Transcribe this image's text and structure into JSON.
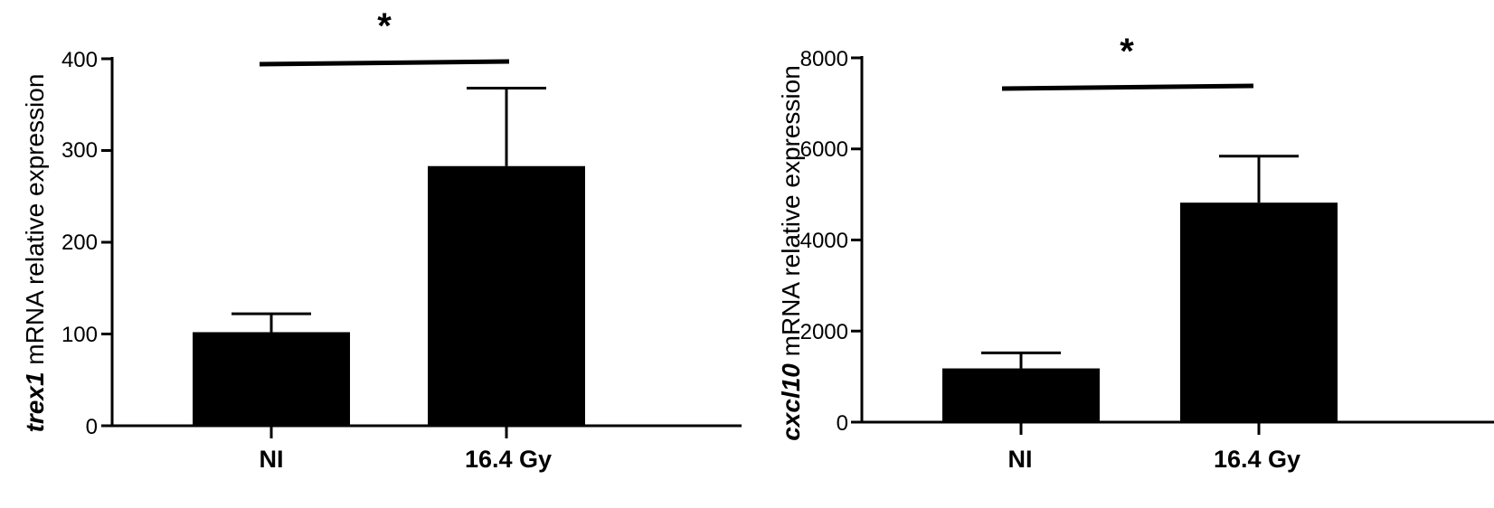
{
  "chart_data": [
    {
      "type": "bar",
      "categories": [
        "NI",
        "16.4 Gy"
      ],
      "values": [
        102,
        283
      ],
      "errors": [
        20,
        85
      ],
      "ylim": [
        0,
        400
      ],
      "yticks": [
        "0",
        "100",
        "200",
        "300",
        "400"
      ],
      "ylabel_gene": "trex1",
      "ylabel_rest": " mRNA relative expression",
      "significance": "*",
      "bar_color": "#000000"
    },
    {
      "type": "bar",
      "categories": [
        "NI",
        "16.4 Gy"
      ],
      "values": [
        1180,
        4820
      ],
      "errors": [
        340,
        1020
      ],
      "ylim": [
        0,
        8000
      ],
      "yticks": [
        "0",
        "2000",
        "4000",
        "6000",
        "8000"
      ],
      "ylabel_gene": "cxcl10",
      "ylabel_rest": " mRNA relative expression",
      "significance": "*",
      "bar_color": "#000000"
    }
  ]
}
